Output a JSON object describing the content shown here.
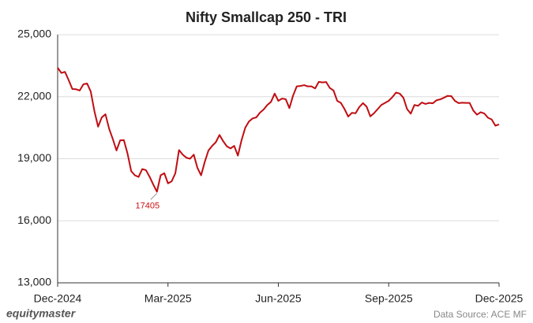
{
  "chart_data": {
    "type": "line",
    "title": "Nifty Smallcap 250 - TRI",
    "source": "Data Source: ACE MF",
    "brand": "equitymaster",
    "x": [
      0,
      0.1,
      0.2,
      0.3,
      0.4,
      0.5,
      0.6,
      0.7,
      0.8,
      0.9,
      1,
      1.1,
      1.2,
      1.3,
      1.4,
      1.5,
      1.6,
      1.7,
      1.8,
      1.9,
      2,
      2.1,
      2.2,
      2.3,
      2.4,
      2.5,
      2.6,
      2.7,
      2.8,
      2.9,
      3,
      3.1,
      3.2,
      3.3,
      3.4,
      3.5,
      3.6,
      3.7,
      3.8,
      3.9,
      4,
      4.1,
      4.2,
      4.3,
      4.4,
      4.5,
      4.6,
      4.7,
      4.8,
      4.9,
      5,
      5.1,
      5.2,
      5.3,
      5.4,
      5.5,
      5.6,
      5.7,
      5.8,
      5.9,
      6,
      6.1,
      6.2,
      6.3,
      6.4,
      6.5,
      6.6,
      6.7,
      6.8,
      6.9,
      7,
      7.1,
      7.2,
      7.3,
      7.4,
      7.5,
      7.6,
      7.7,
      7.8,
      7.9,
      8,
      8.1,
      8.2,
      8.3,
      8.4,
      8.5,
      8.6,
      8.7,
      8.8,
      8.9,
      9,
      9.1,
      9.2,
      9.3,
      9.4,
      9.5,
      9.6,
      9.7,
      9.8,
      9.9,
      10,
      10.1,
      10.2,
      10.3,
      10.4,
      10.5,
      10.6,
      10.7,
      10.8,
      10.9,
      11,
      11.1,
      11.2,
      11.3,
      11.4,
      11.5,
      11.6,
      11.7,
      11.8,
      11.9,
      12
    ],
    "series": [
      {
        "color": "#c00d12",
        "values": [
          23400,
          23150,
          23200,
          22800,
          22370,
          22360,
          22300,
          22600,
          22640,
          22250,
          21300,
          20550,
          21000,
          21150,
          20450,
          19950,
          19400,
          19890,
          19900,
          19250,
          18400,
          18200,
          18120,
          18500,
          18450,
          18130,
          17750,
          17405,
          18200,
          18300,
          17810,
          17910,
          18300,
          19420,
          19200,
          19050,
          19000,
          19200,
          18560,
          18200,
          18850,
          19400,
          19620,
          19800,
          20150,
          19850,
          19600,
          19500,
          19620,
          19150,
          19900,
          20500,
          20800,
          20950,
          21000,
          21230,
          21380,
          21600,
          21750,
          22150,
          21800,
          21910,
          21880,
          21450,
          22050,
          22500,
          22520,
          22560,
          22500,
          22500,
          22400,
          22720,
          22690,
          22710,
          22420,
          22300,
          21800,
          21700,
          21400,
          21040,
          21220,
          21200,
          21500,
          21690,
          21520,
          21050,
          21200,
          21400,
          21600,
          21700,
          21800,
          21980,
          22200,
          22150,
          21950,
          21400,
          21180,
          21600,
          21560,
          21720,
          21650,
          21700,
          21680,
          21830,
          21870,
          21950,
          22040,
          22030,
          21800,
          21690,
          21710,
          21700,
          21700,
          21330,
          21130,
          21250,
          21190,
          20980,
          20900,
          20600,
          20660
        ]
      }
    ],
    "annotations": [
      {
        "x": 2.7,
        "value": 17405
      }
    ],
    "xlim": [
      0,
      12
    ],
    "xticks": [
      {
        "value": 0,
        "label": "Dec-2024"
      },
      {
        "value": 3,
        "label": "Mar-2025"
      },
      {
        "value": 6,
        "label": "Jun-2025"
      },
      {
        "value": 9,
        "label": "Sep-2025"
      },
      {
        "value": 12,
        "label": "Dec-2025"
      }
    ],
    "ylim": [
      13000,
      25000
    ],
    "yticks": [
      {
        "value": 13000,
        "label": "13,000"
      },
      {
        "value": 16000,
        "label": "16,000"
      },
      {
        "value": 19000,
        "label": "19,000"
      },
      {
        "value": 22000,
        "label": "22,000"
      },
      {
        "value": 25000,
        "label": "25,000"
      }
    ],
    "grid": true
  }
}
